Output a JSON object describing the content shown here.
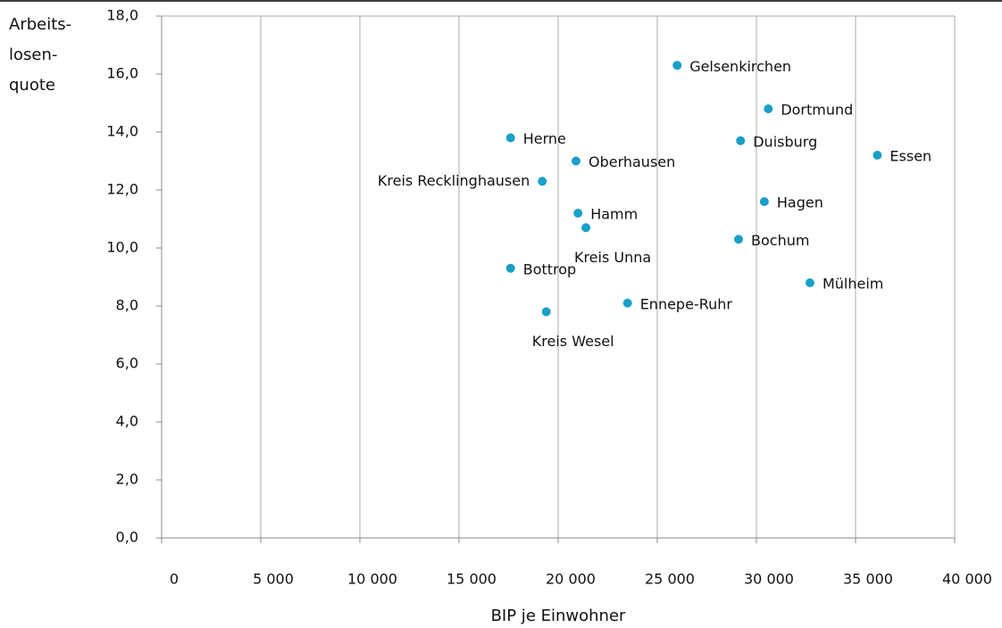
{
  "chart_data": {
    "type": "scatter",
    "xlabel": "BIP je Einwohner",
    "ylabel_lines": [
      "Arbeits-",
      "losen-",
      "quote"
    ],
    "color": "#1a9fc9",
    "grid": true,
    "xlim": [
      0,
      40000
    ],
    "ylim": [
      0,
      18
    ],
    "xticks": [
      0,
      {
        "value": 5000,
        "label": "5 000"
      },
      {
        "value": 10000,
        "label": "10 000"
      },
      {
        "value": 15000,
        "label": "15 000"
      },
      {
        "value": 20000,
        "label": "20 000"
      },
      {
        "value": 25000,
        "label": "25 000"
      },
      {
        "value": 30000,
        "label": "30 000"
      },
      {
        "value": 35000,
        "label": "35 000"
      },
      {
        "value": 40000,
        "label": "40 000"
      }
    ],
    "yticks": [
      {
        "value": 0,
        "label": "0,0"
      },
      {
        "value": 2,
        "label": "2,0"
      },
      {
        "value": 4,
        "label": "4,0"
      },
      {
        "value": 6,
        "label": "6,0"
      },
      {
        "value": 8,
        "label": "8,0"
      },
      {
        "value": 10,
        "label": "10,0"
      },
      {
        "value": 12,
        "label": "12,0"
      },
      {
        "value": 14,
        "label": "14,0"
      },
      {
        "value": 16,
        "label": "16,0"
      },
      {
        "value": 18,
        "label": "18,0"
      }
    ],
    "labels": [
      "Gelsenkirchen",
      "Dortmund",
      "Herne",
      "Duisburg",
      "Essen",
      "Oberhausen",
      "Kreis Recklinghausen",
      "Hagen",
      "Hamm",
      "Kreis Unna",
      "Bochum",
      "Bottrop",
      "Mülheim",
      "Ennepe-Ruhr",
      "Kreis Wesel"
    ],
    "x": [
      26000,
      30600,
      17600,
      29200,
      36100,
      20900,
      19200,
      30400,
      21000,
      21400,
      29100,
      17600,
      32700,
      23500,
      19400
    ],
    "values": [
      16.3,
      14.8,
      13.8,
      13.7,
      13.2,
      13.0,
      12.3,
      11.6,
      11.2,
      10.7,
      10.3,
      9.3,
      8.8,
      8.1,
      7.8
    ]
  }
}
